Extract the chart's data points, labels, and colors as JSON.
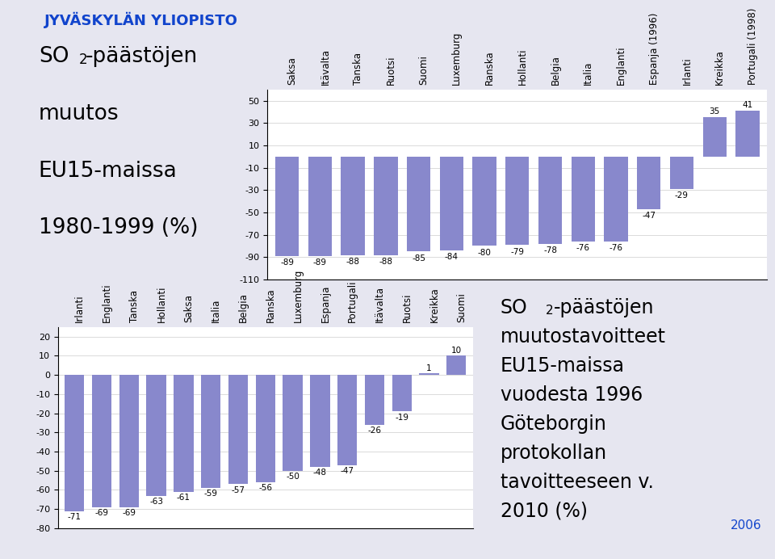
{
  "chart1": {
    "categories": [
      "Saksa",
      "Itävalta",
      "Tanska",
      "Ruotsi",
      "Suomi",
      "Luxemburg",
      "Ranska",
      "Hollanti",
      "Belgia",
      "Italia",
      "Englanti",
      "Espanja (1996)",
      "Irlanti",
      "Kreikka",
      "Portugali (1998)"
    ],
    "values": [
      -89,
      -89,
      -88,
      -88,
      -85,
      -84,
      -80,
      -79,
      -78,
      -76,
      -76,
      -47,
      -29,
      35,
      41
    ],
    "ylim": [
      -110,
      60
    ],
    "yticks": [
      -110,
      -90,
      -70,
      -50,
      -30,
      -10,
      10,
      30,
      50
    ]
  },
  "chart2": {
    "categories": [
      "Irlanti",
      "Englanti",
      "Tanska",
      "Hollanti",
      "Saksa",
      "Italia",
      "Belgia",
      "Ranska",
      "Luxemburg",
      "Espanja",
      "Portugali",
      "Itävalta",
      "Ruotsi",
      "Kreikka",
      "Suomi"
    ],
    "values": [
      -71,
      -69,
      -69,
      -63,
      -61,
      -59,
      -57,
      -56,
      -50,
      -48,
      -47,
      -26,
      -19,
      1,
      10
    ],
    "ylim": [
      -80,
      25
    ],
    "yticks": [
      -80,
      -70,
      -60,
      -50,
      -40,
      -30,
      -20,
      -10,
      0,
      10,
      20
    ]
  },
  "title1_line1": "SO",
  "title1_line1b": "-päästöjen",
  "title1_lines": [
    "muutos",
    "EU15-maissa",
    "1980-1999 (%)"
  ],
  "title2_line1b": "-päästöjen",
  "title2_lines": [
    "muutostavoitteet",
    "EU15-maissa",
    "vuodesta 1996",
    "Göteborgin",
    "protokollan",
    "tavoitteeseen v.",
    "2010 (%)"
  ],
  "header_text": "JYVÄSKYLÄN YLIOPISTO",
  "year_text": "2006",
  "bg_color": "#e6e6f0",
  "sidebar_color": "#2255bb",
  "header_color": "#1144cc",
  "bar_color": "#8888cc",
  "grid_color": "#cccccc",
  "chart_bg": "#ffffff"
}
